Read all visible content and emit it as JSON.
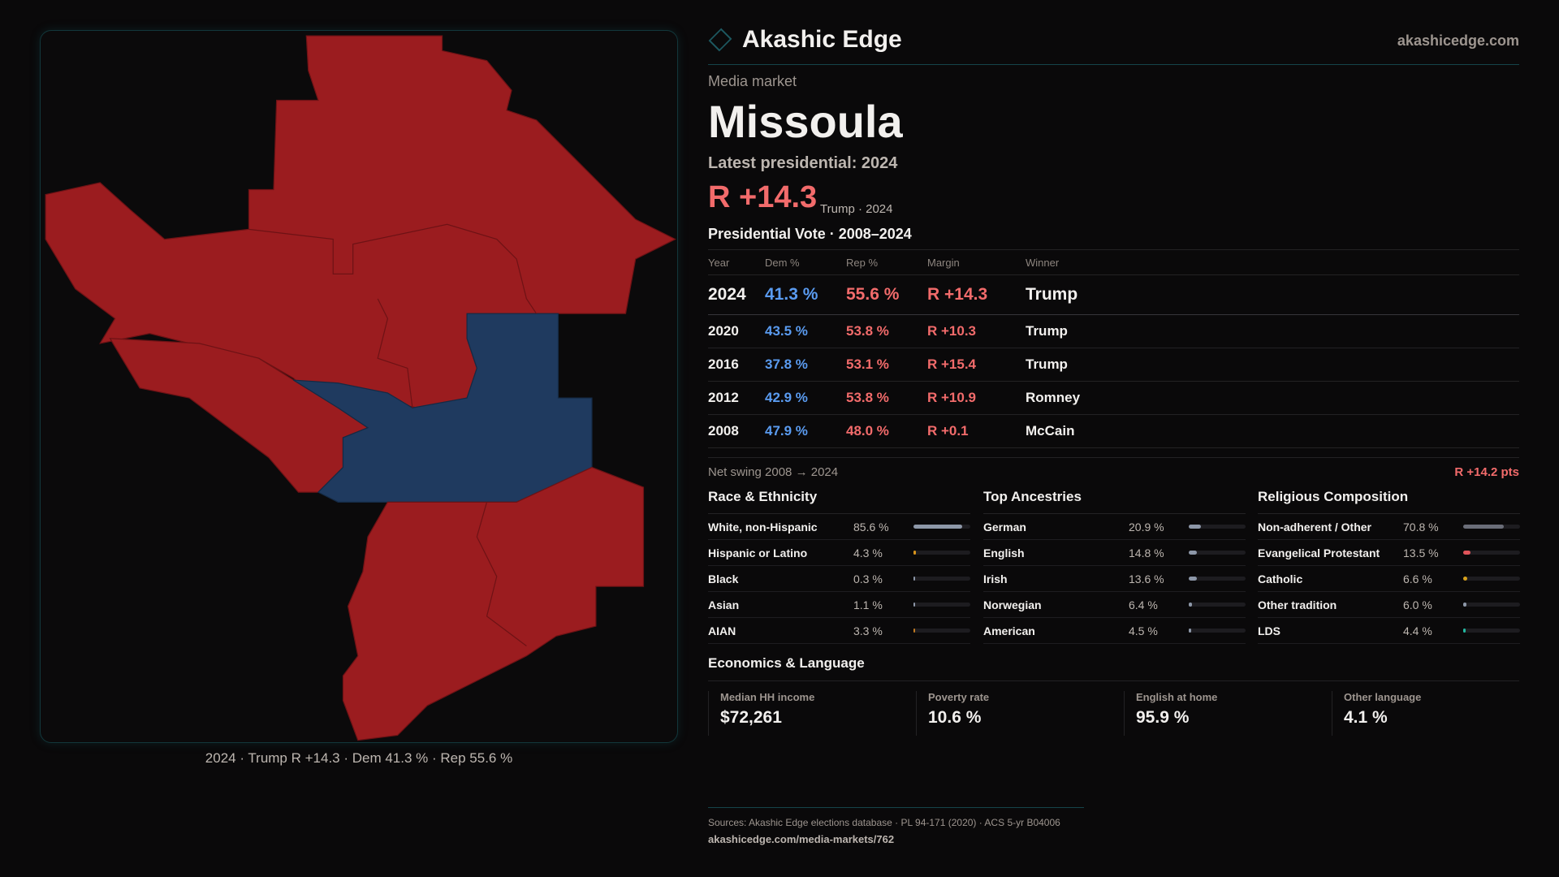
{
  "header": {
    "brand": "Akashic Edge",
    "site": "akashicedge.com"
  },
  "market": {
    "kicker": "Media market",
    "name": "Missoula",
    "latest": "Latest presidential: 2024",
    "margin": "R +14.3",
    "margin_sub": "Trump · 2024"
  },
  "map": {
    "caption": "2024 · Trump R +14.3 · Dem 41.3 % · Rep 55.6 %",
    "colors": {
      "rep": "#9b1c1f",
      "dem": "#1f3a5f"
    }
  },
  "vote": {
    "title": "Presidential Vote · 2008–2024",
    "headers": [
      "Year",
      "Dem %",
      "Rep %",
      "Margin",
      "Winner"
    ],
    "rows": [
      [
        "2024",
        "41.3 %",
        "55.6 %",
        "R +14.3",
        "Trump"
      ],
      [
        "2020",
        "43.5 %",
        "53.8 %",
        "R +10.3",
        "Trump"
      ],
      [
        "2016",
        "37.8 %",
        "53.1 %",
        "R +15.4",
        "Trump"
      ],
      [
        "2012",
        "42.9 %",
        "53.8 %",
        "R +10.9",
        "Romney"
      ],
      [
        "2008",
        "47.9 %",
        "48.0 %",
        "R +0.1",
        "McCain"
      ]
    ]
  },
  "swing": {
    "label": "Net swing 2008 → 2024",
    "value": "R +14.2 pts"
  },
  "demographics": [
    {
      "title": "Race & Ethnicity",
      "items": [
        {
          "label": "White, non-Hispanic",
          "value": "85.6 %",
          "pct": 85.6,
          "color": "#8d97a8"
        },
        {
          "label": "Hispanic or Latino",
          "value": "4.3 %",
          "pct": 4.3,
          "color": "#d8941c"
        },
        {
          "label": "Black",
          "value": "0.3 %",
          "pct": 0.3,
          "color": "#8d97a8"
        },
        {
          "label": "Asian",
          "value": "1.1 %",
          "pct": 1.1,
          "color": "#8d97a8"
        },
        {
          "label": "AIAN",
          "value": "3.3 %",
          "pct": 3.3,
          "color": "#c07a22"
        }
      ]
    },
    {
      "title": "Top Ancestries",
      "items": [
        {
          "label": "German",
          "value": "20.9 %",
          "pct": 20.9,
          "color": "#8d97a8"
        },
        {
          "label": "English",
          "value": "14.8 %",
          "pct": 14.8,
          "color": "#8d97a8"
        },
        {
          "label": "Irish",
          "value": "13.6 %",
          "pct": 13.6,
          "color": "#8d97a8"
        },
        {
          "label": "Norwegian",
          "value": "6.4 %",
          "pct": 6.4,
          "color": "#8d97a8"
        },
        {
          "label": "American",
          "value": "4.5 %",
          "pct": 4.5,
          "color": "#8d97a8"
        }
      ]
    },
    {
      "title": "Religious Composition",
      "items": [
        {
          "label": "Non-adherent / Other",
          "value": "70.8 %",
          "pct": 70.8,
          "color": "#6a6d78"
        },
        {
          "label": "Evangelical Protestant",
          "value": "13.5 %",
          "pct": 13.5,
          "color": "#e0545a"
        },
        {
          "label": "Catholic",
          "value": "6.6 %",
          "pct": 6.6,
          "color": "#d8a21c"
        },
        {
          "label": "Other tradition",
          "value": "6.0 %",
          "pct": 6.0,
          "color": "#8d97a8"
        },
        {
          "label": "LDS",
          "value": "4.4 %",
          "pct": 4.4,
          "color": "#22b8a0"
        }
      ]
    }
  ],
  "economics": {
    "title": "Economics & Language",
    "stats": [
      {
        "label": "Median HH income",
        "value": "$72,261"
      },
      {
        "label": "Poverty rate",
        "value": "10.6 %"
      },
      {
        "label": "English at home",
        "value": "95.9 %"
      },
      {
        "label": "Other language",
        "value": "4.1 %"
      }
    ]
  },
  "footer": {
    "sources": "Sources: Akashic Edge elections database · PL 94-171 (2020) · ACS 5-yr B04006",
    "url": "akashicedge.com/media-markets/762"
  }
}
